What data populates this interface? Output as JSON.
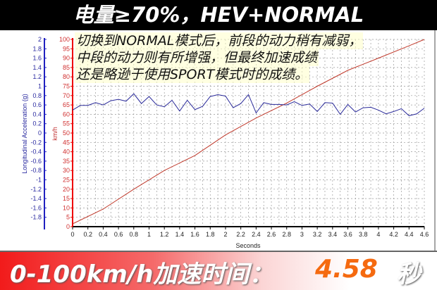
{
  "header": {
    "title": "电量≥70%，HEV+NORMAL"
  },
  "annotation": {
    "lines": [
      "切换到NORMAL模式后，前段的动力稍有减弱，",
      "中段的动力则有所增强，但最终加速成绩",
      "还是略逊于使用SPORT模式时的成绩。"
    ]
  },
  "banner": {
    "label": "0-100km/h加速时间：",
    "value": "4.58",
    "unit": "秒"
  },
  "colors": {
    "speed": "#c0392b",
    "accel": "#2a2a9a",
    "banner_value": "#f56a10"
  },
  "chart_data": {
    "type": "line",
    "xlabel": "Seconds",
    "xlim": [
      0,
      4.6
    ],
    "xticks": [
      "0",
      "0.2",
      "0.4",
      "0.6",
      "0.8",
      "1",
      "1.2",
      "1.4",
      "1.6",
      "1.8",
      "2",
      "2.2",
      "2.4",
      "2.6",
      "2.8",
      "3",
      "3.2",
      "3.4",
      "3.6",
      "3.8",
      "4",
      "4.2",
      "4.4",
      "4.6"
    ],
    "grid": true,
    "y_left": {
      "label": "Longitudinal Acceleration (g)",
      "lim": [
        -2,
        2
      ],
      "ticks": [
        "2",
        "1.8",
        "1.6",
        "1.4",
        "1.2",
        "1",
        "0.8",
        "0.6",
        "0.4",
        "0.2",
        "0",
        "-0.2",
        "-0.4",
        "-0.6",
        "-0.8",
        "-1",
        "-1.2",
        "-1.4",
        "-1.6",
        "-1.8"
      ]
    },
    "y_right": {
      "label": "km/h",
      "lim": [
        0,
        100
      ],
      "ticks": [
        "100",
        "95",
        "90",
        "85",
        "80",
        "75",
        "70",
        "65",
        "60",
        "55",
        "50",
        "45",
        "40",
        "35",
        "30",
        "25",
        "20",
        "15",
        "10",
        "5",
        "0"
      ]
    },
    "series": [
      {
        "axis": "speed",
        "x": [
          0,
          0.4,
          0.8,
          1.2,
          1.6,
          2.0,
          2.4,
          2.8,
          3.2,
          3.6,
          4.0,
          4.4,
          4.6
        ],
        "values": [
          1.5,
          9.4,
          20,
          30,
          38,
          49,
          58,
          66,
          75,
          83.5,
          90,
          96.6,
          100
        ]
      },
      {
        "axis": "accel",
        "x": [
          0,
          0.1,
          0.2,
          0.3,
          0.4,
          0.5,
          0.6,
          0.7,
          0.8,
          0.9,
          1.0,
          1.1,
          1.2,
          1.3,
          1.4,
          1.5,
          1.6,
          1.7,
          1.8,
          1.9,
          2.0,
          2.1,
          2.2,
          2.3,
          2.4,
          2.5,
          2.6,
          2.7,
          2.8,
          2.9,
          3.0,
          3.1,
          3.2,
          3.3,
          3.4,
          3.5,
          3.6,
          3.7,
          3.8,
          3.9,
          4.0,
          4.1,
          4.2,
          4.3,
          4.4,
          4.5,
          4.6
        ],
        "values": [
          0.49,
          0.59,
          0.59,
          0.65,
          0.6,
          0.69,
          0.72,
          0.68,
          0.84,
          0.63,
          0.78,
          0.6,
          0.56,
          0.7,
          0.47,
          0.7,
          0.5,
          0.57,
          0.78,
          0.82,
          0.79,
          0.54,
          0.63,
          0.82,
          0.43,
          0.65,
          0.61,
          0.61,
          0.6,
          0.67,
          0.59,
          0.62,
          0.46,
          0.65,
          0.64,
          0.4,
          0.61,
          0.45,
          0.54,
          0.55,
          0.49,
          0.41,
          0.46,
          0.52,
          0.37,
          0.41,
          0.53
        ]
      }
    ]
  }
}
